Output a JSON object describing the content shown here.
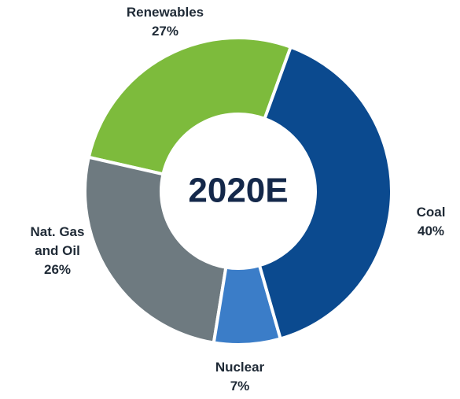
{
  "chart_data": {
    "type": "pie",
    "center_text": "2020E",
    "categories": [
      "Coal",
      "Nuclear",
      "Nat. Gas and Oil",
      "Renewables"
    ],
    "values": [
      40,
      7,
      26,
      27
    ],
    "value_labels": [
      "40%",
      "7%",
      "26%",
      "27%"
    ],
    "colors": [
      "#0b4a8f",
      "#3b7dc8",
      "#6e7a80",
      "#7dbb3c"
    ]
  }
}
